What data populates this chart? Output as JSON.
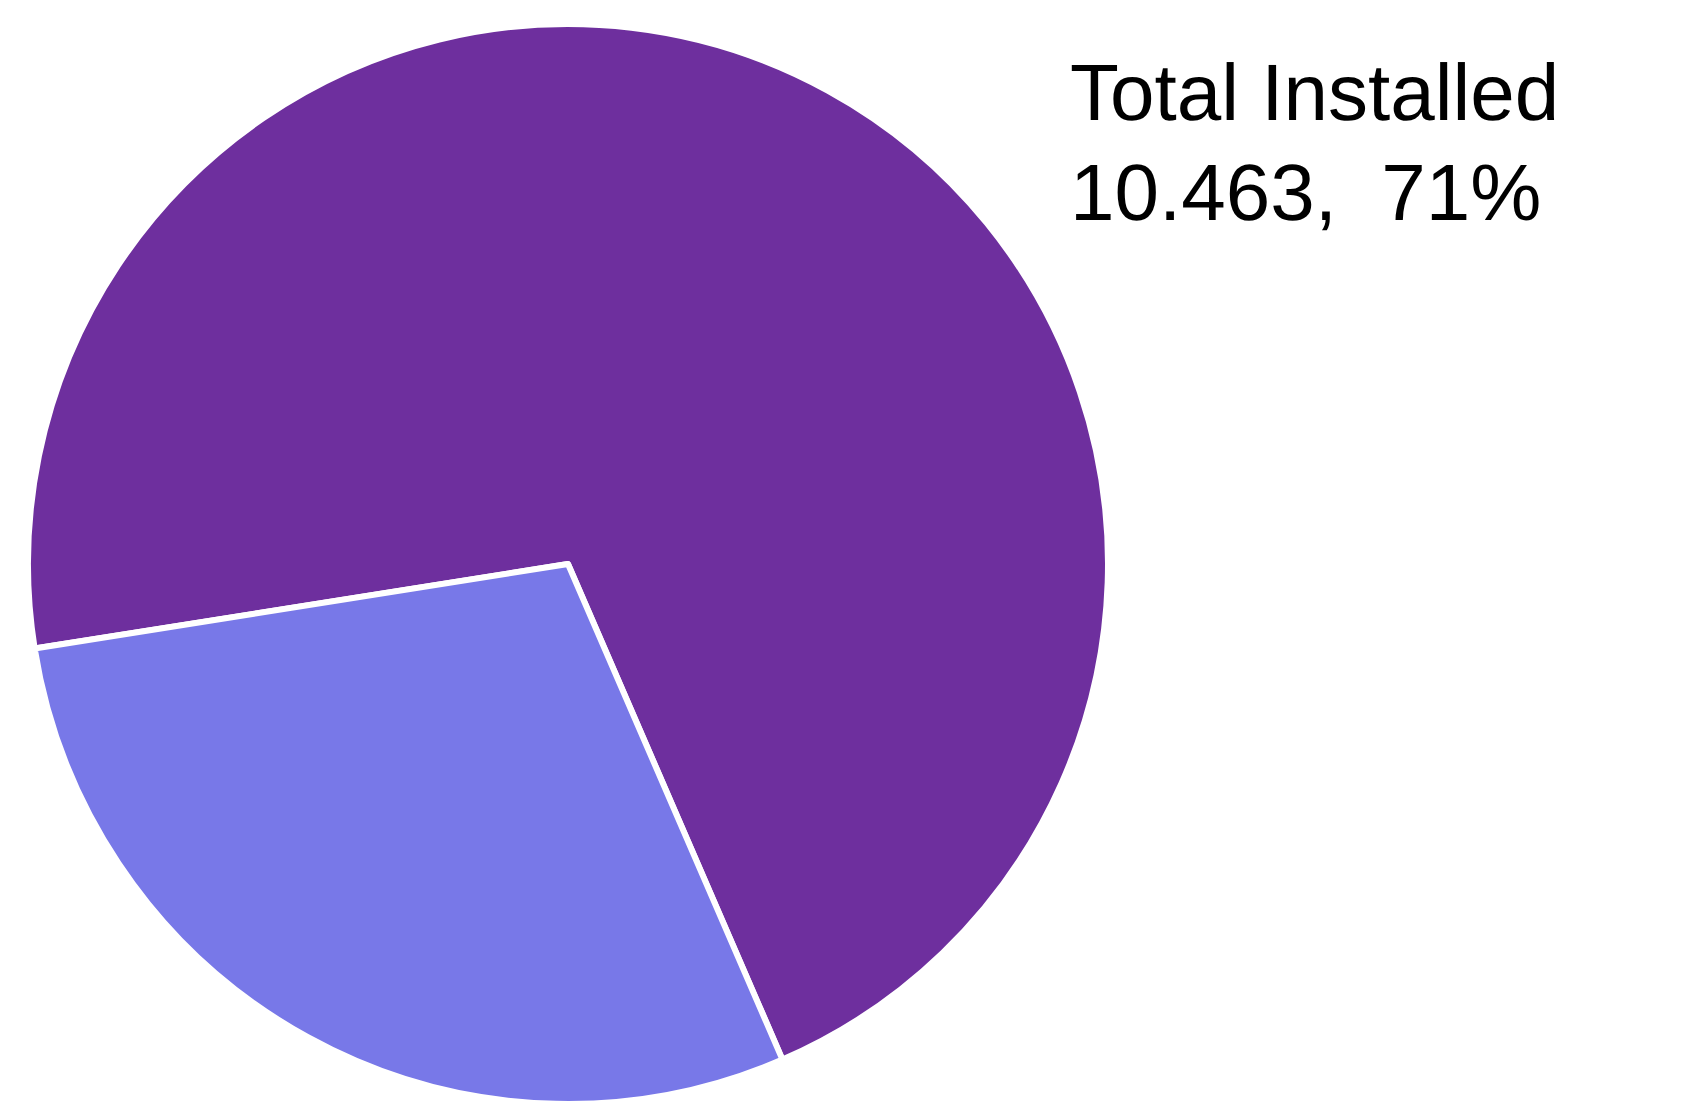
{
  "chart_data": {
    "type": "pie",
    "categories": [
      "Total Installed",
      null
    ],
    "values": [
      71,
      29
    ],
    "colors": [
      "#6e2f9e",
      "#7878e8"
    ],
    "value_labels": [
      "10.463,  71%",
      null
    ],
    "legend": false
  }
}
